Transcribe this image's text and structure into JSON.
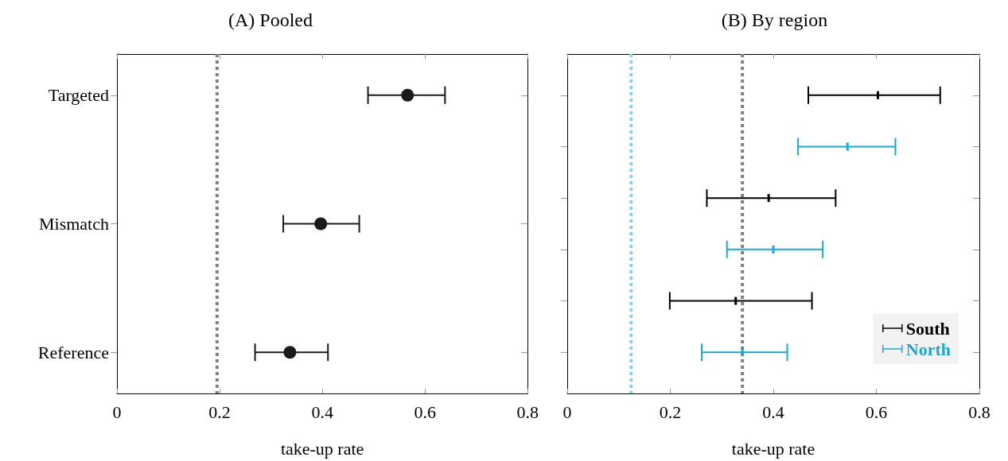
{
  "chart_data": [
    {
      "type": "scatter",
      "orientation": "horizontal",
      "title": "(A) Pooled",
      "xlabel": "take-up rate",
      "categories": [
        "Targeted",
        "Mismatch",
        "Reference"
      ],
      "series": [
        {
          "color": "#1a1a1a",
          "values": [
            0.566,
            0.397,
            0.337
          ],
          "errors": [
            [
              0.489,
              0.639
            ],
            [
              0.324,
              0.472
            ],
            [
              0.269,
              0.411
            ]
          ]
        }
      ],
      "marker": "circle",
      "xlim": [
        0,
        0.8
      ],
      "xticks": [
        0,
        0.2,
        0.4,
        0.6,
        0.8
      ],
      "grid": false,
      "legend": false,
      "ref_lines": [
        {
          "axis": "x",
          "value": 0.195,
          "color": "#808080",
          "line_style": "dashed"
        }
      ]
    },
    {
      "type": "scatter",
      "orientation": "horizontal",
      "title": "(B) By region",
      "xlabel": "take-up rate",
      "categories": [
        null,
        null,
        null,
        null,
        null,
        null
      ],
      "series": [
        {
          "name": "South",
          "color": "#000000",
          "values": [
            0.603,
            null,
            0.391,
            null,
            0.327,
            null
          ],
          "errors": [
            [
              0.468,
              0.724
            ],
            null,
            [
              0.271,
              0.521
            ],
            null,
            [
              0.199,
              0.475
            ],
            null
          ]
        },
        {
          "name": "North",
          "color": "#1fa8cc",
          "values": [
            null,
            0.544,
            null,
            0.4,
            null,
            0.34
          ],
          "errors": [
            null,
            [
              0.448,
              0.637
            ],
            null,
            [
              0.31,
              0.496
            ],
            null,
            [
              0.261,
              0.427
            ]
          ]
        }
      ],
      "xlim": [
        0,
        0.8
      ],
      "xticks": [
        0,
        0.2,
        0.4,
        0.6,
        0.8
      ],
      "grid": false,
      "legend": "bottom right",
      "ref_lines": [
        {
          "axis": "x",
          "value": 0.124,
          "color": "#89d2e6",
          "line_style": "dashed"
        },
        {
          "axis": "x",
          "value": 0.34,
          "color": "#808080",
          "line_style": "dashed"
        }
      ]
    }
  ]
}
